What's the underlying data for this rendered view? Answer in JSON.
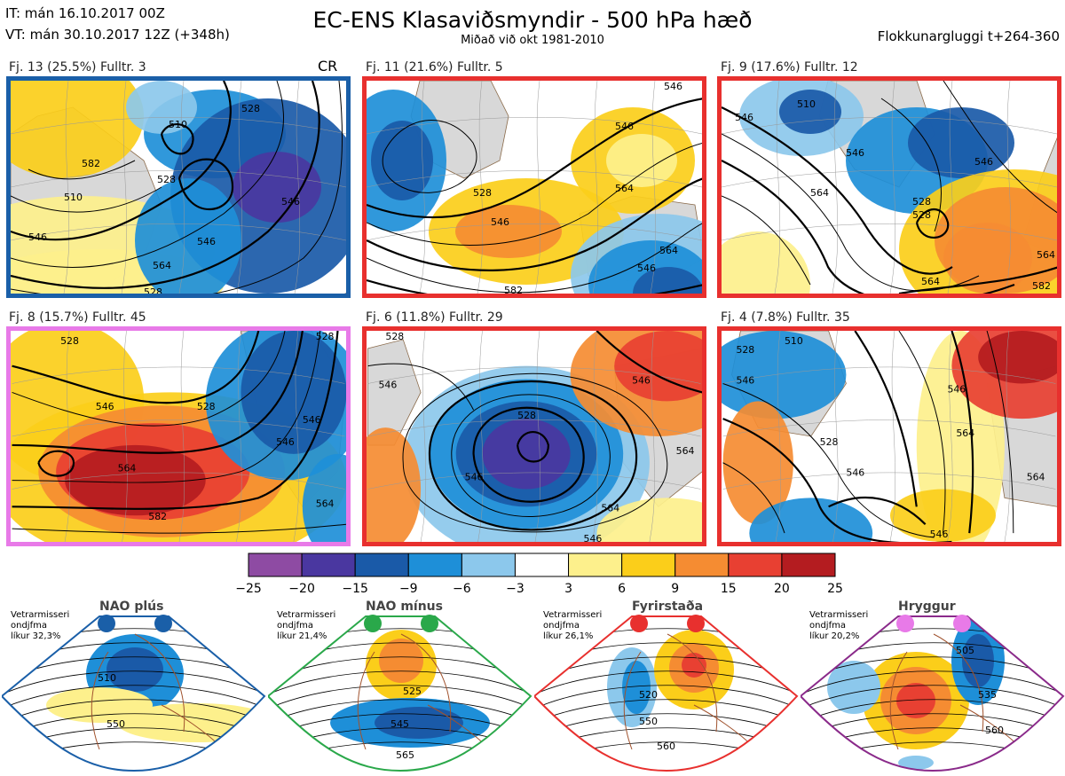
{
  "header": {
    "it_line": "IT: mán 16.10.2017 00Z",
    "vt_line": "VT: mán 30.10.2017 12Z  (+348h)",
    "title": "EC-ENS Klasaviðsmyndir - 500 hPa hæð",
    "subtitle": "Miðað við okt 1981-2010",
    "window": "Flokkunargluggi t+264-360"
  },
  "panels": [
    {
      "label": "Fj. 13 (25.5%)   Fulltr. 3",
      "border": "#1a5fa8",
      "marker": "CR",
      "contours": [
        "510",
        "528",
        "546",
        "546",
        "528",
        "546",
        "564",
        "582",
        "510",
        "528"
      ]
    },
    {
      "label": "Fj. 11 (21.6%)   Fulltr. 5",
      "border": "#e8302e",
      "marker": "",
      "contours": [
        "528",
        "546",
        "546",
        "564",
        "582",
        "546",
        "564",
        "546"
      ]
    },
    {
      "label": "Fj. 9 (17.6%)   Fulltr. 12",
      "border": "#e8302e",
      "marker": "",
      "contours": [
        "510",
        "546",
        "528",
        "546",
        "564",
        "528",
        "546",
        "564",
        "582",
        "564"
      ]
    },
    {
      "label": "Fj. 8 (15.7%)   Fulltr. 45",
      "border": "#e87ae8",
      "marker": "",
      "contours": [
        "528",
        "546",
        "528",
        "546",
        "564",
        "582",
        "564",
        "546",
        "528"
      ]
    },
    {
      "label": "Fj. 6 (11.8%)   Fulltr. 29",
      "border": "#e8302e",
      "marker": "",
      "contours": [
        "528",
        "546",
        "546",
        "528",
        "546",
        "564",
        "546",
        "564"
      ]
    },
    {
      "label": "Fj. 4 (7.8%)   Fulltr. 35",
      "border": "#e8302e",
      "marker": "",
      "contours": [
        "528",
        "510",
        "546",
        "546",
        "528",
        "546",
        "564",
        "546",
        "564"
      ]
    }
  ],
  "colorbar": {
    "colors": [
      "#8e4ba3",
      "#4a37a0",
      "#1a5aa8",
      "#1e8fd8",
      "#8cc8ec",
      "#ffffff",
      "#fdf08c",
      "#fbce1a",
      "#f58c32",
      "#e84032",
      "#b41c20"
    ],
    "ticks": [
      "−25",
      "−20",
      "−15",
      "−9",
      "−6",
      "−3",
      "3",
      "6",
      "9",
      "15",
      "20",
      "25"
    ]
  },
  "regimes": [
    {
      "name": "NAO plús",
      "info": [
        "Vetrarmisseri",
        "ondjfma",
        "líkur 32,3%"
      ],
      "border": "#1a5fa8",
      "dot": "#1a5fa8",
      "contours": [
        "510",
        "550"
      ]
    },
    {
      "name": "NAO mínus",
      "info": [
        "Vetrarmisseri",
        "ondjfma",
        "líkur 21,4%"
      ],
      "border": "#2aa84a",
      "dot": "#2aa84a",
      "contours": [
        "525",
        "545",
        "565"
      ]
    },
    {
      "name": "Fyrirstaða",
      "info": [
        "Vetrarmisseri",
        "ondjfma",
        "líkur 26,1%"
      ],
      "border": "#e8302e",
      "dot": "#e8302e",
      "contours": [
        "520",
        "550",
        "560"
      ]
    },
    {
      "name": "Hryggur",
      "info": [
        "Vetrarmisseri",
        "ondjfma",
        "líkur 20,2%"
      ],
      "border": "#8a2a8a",
      "dot": "#e87ae8",
      "contours": [
        "505",
        "535",
        "560"
      ]
    }
  ]
}
